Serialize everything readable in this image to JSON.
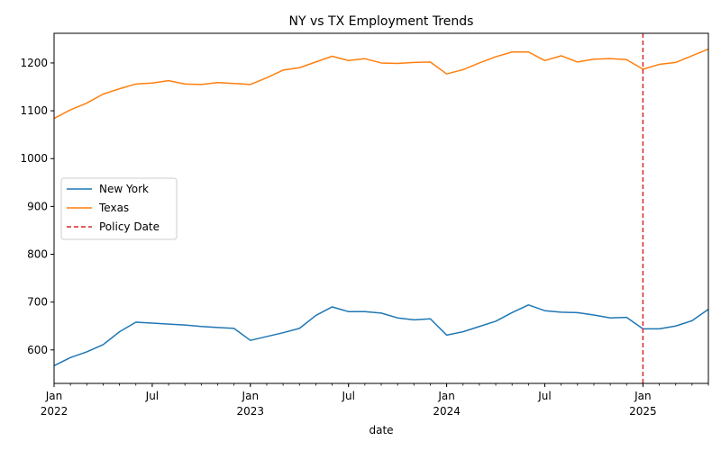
{
  "chart_data": {
    "type": "line",
    "title": "NY vs TX Employment Trends",
    "xlabel": "date",
    "ylabel": "",
    "x": [
      "2022-01",
      "2022-02",
      "2022-03",
      "2022-04",
      "2022-05",
      "2022-06",
      "2022-07",
      "2022-08",
      "2022-09",
      "2022-10",
      "2022-11",
      "2022-12",
      "2023-01",
      "2023-02",
      "2023-03",
      "2023-04",
      "2023-05",
      "2023-06",
      "2023-07",
      "2023-08",
      "2023-09",
      "2023-10",
      "2023-11",
      "2023-12",
      "2024-01",
      "2024-02",
      "2024-03",
      "2024-04",
      "2024-05",
      "2024-06",
      "2024-07",
      "2024-08",
      "2024-09",
      "2024-10",
      "2024-11",
      "2024-12",
      "2025-01",
      "2025-02",
      "2025-03",
      "2025-04",
      "2025-05"
    ],
    "xlim": [
      "2022-01",
      "2025-05"
    ],
    "ylim": [
      530,
      1262
    ],
    "yticks": [
      600,
      700,
      800,
      900,
      1000,
      1100,
      1200
    ],
    "xticks": [
      {
        "date": "2022-01",
        "label": "Jan",
        "year": "2022"
      },
      {
        "date": "2022-07",
        "label": "Jul",
        "year": ""
      },
      {
        "date": "2023-01",
        "label": "Jan",
        "year": "2023"
      },
      {
        "date": "2023-07",
        "label": "Jul",
        "year": ""
      },
      {
        "date": "2024-01",
        "label": "Jan",
        "year": "2024"
      },
      {
        "date": "2024-07",
        "label": "Jul",
        "year": ""
      },
      {
        "date": "2025-01",
        "label": "Jan",
        "year": "2025"
      }
    ],
    "series": [
      {
        "name": "New York",
        "color": "#1f77b4",
        "values": [
          567,
          584,
          596,
          611,
          638,
          658,
          656,
          654,
          652,
          649,
          647,
          645,
          620,
          628,
          636,
          645,
          672,
          690,
          680,
          680,
          677,
          667,
          663,
          665,
          631,
          638,
          649,
          660,
          678,
          694,
          682,
          679,
          678,
          673,
          667,
          668,
          644,
          644,
          650,
          661,
          685
        ]
      },
      {
        "name": "Texas",
        "color": "#ff7f0e",
        "values": [
          1084,
          1102,
          1116,
          1135,
          1146,
          1156,
          1158,
          1163,
          1156,
          1155,
          1159,
          1157,
          1155,
          1169,
          1185,
          1190,
          1202,
          1214,
          1205,
          1209,
          1200,
          1199,
          1201,
          1202,
          1177,
          1186,
          1200,
          1213,
          1223,
          1223,
          1205,
          1215,
          1202,
          1208,
          1209,
          1207,
          1187,
          1197,
          1201,
          1215,
          1229
        ]
      }
    ],
    "reference_lines": [
      {
        "name": "Policy Date",
        "x": "2025-01",
        "color": "#d62728",
        "style": "dashed"
      }
    ],
    "legend": {
      "placement": "center-left"
    },
    "grid": false
  }
}
